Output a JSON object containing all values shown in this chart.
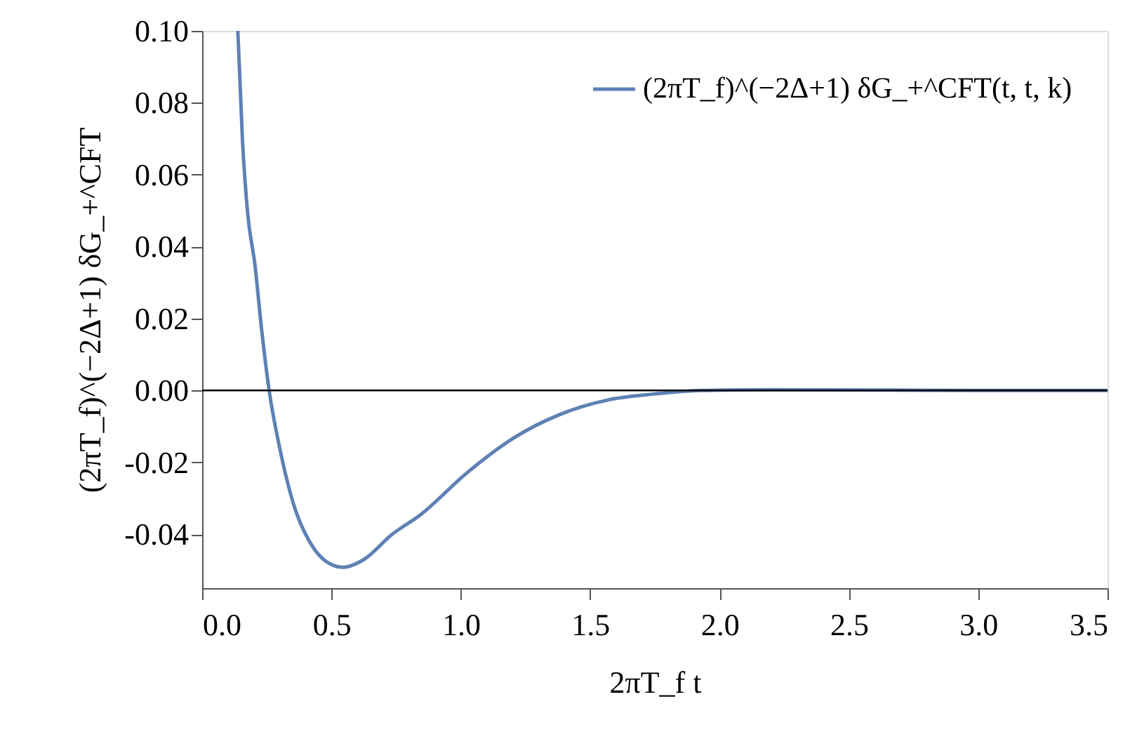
{
  "chart_data": {
    "type": "line",
    "xlabel": "2πT_f t",
    "ylabel": "(2πT_f)^(−2Δ+1) δG_+^CFT",
    "x": [
      0.138,
      0.156,
      0.175,
      0.205,
      0.229,
      0.259,
      0.301,
      0.355,
      0.419,
      0.482,
      0.545,
      0.626,
      0.735,
      0.844,
      1.024,
      1.205,
      1.386,
      1.566,
      1.747,
      1.93,
      2.2,
      2.6,
      3.0,
      3.5
    ],
    "series": [
      {
        "name": "(2πT_f)^(−2Δ+1) δG_+^CFT(t, t, k)",
        "color": "#5e81b5",
        "values": [
          0.1,
          0.0695,
          0.05,
          0.0344,
          0.0176,
          0.0,
          -0.0164,
          -0.032,
          -0.0425,
          -0.0477,
          -0.0492,
          -0.047,
          -0.04,
          -0.0346,
          -0.0229,
          -0.0132,
          -0.0066,
          -0.0027,
          -0.001,
          0.0,
          0.0002,
          0.0001,
          0.0,
          0.0
        ]
      }
    ],
    "xlim": [
      0,
      3.5
    ],
    "xticks": [
      {
        "value": 0,
        "label": "0.0"
      },
      {
        "value": 0.5,
        "label": "0.5"
      },
      {
        "value": 1,
        "label": "1.0"
      },
      {
        "value": 1.5,
        "label": "1.5"
      },
      {
        "value": 2,
        "label": "2.0"
      },
      {
        "value": 2.5,
        "label": "2.5"
      },
      {
        "value": 3,
        "label": "3.0"
      },
      {
        "value": 3.5,
        "label": "3.5"
      }
    ],
    "ylim": [
      -0.055,
      0.1
    ],
    "yticks": [
      {
        "value": -0.04,
        "label": "-0.04"
      },
      {
        "value": -0.02,
        "label": "-0.02"
      },
      {
        "value": 0,
        "label": "0.00"
      },
      {
        "value": 0.02,
        "label": "0.02"
      },
      {
        "value": 0.04,
        "label": "0.04"
      },
      {
        "value": 0.06,
        "label": "0.06"
      },
      {
        "value": 0.08,
        "label": "0.08"
      },
      {
        "value": 0.1,
        "label": "0.10"
      }
    ],
    "ref_lines": [
      {
        "axis": "y",
        "value": 0,
        "color": "#000000"
      }
    ],
    "legend": "top right",
    "grid": false,
    "marker": "none",
    "line_style": "solid"
  }
}
